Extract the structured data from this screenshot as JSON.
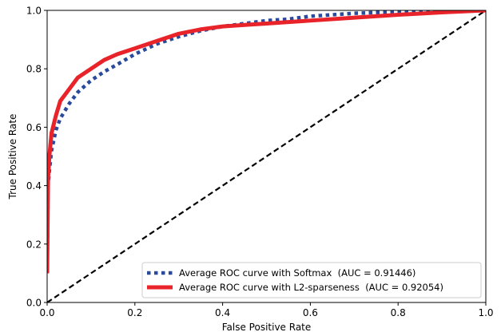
{
  "chart_data": {
    "type": "line",
    "title": "",
    "xlabel": "False Positive Rate",
    "ylabel": "True Positive Rate",
    "xlim": [
      0.0,
      1.0
    ],
    "ylim": [
      0.0,
      1.0
    ],
    "x_ticks": [
      "0.0",
      "0.2",
      "0.4",
      "0.6",
      "0.8",
      "1.0"
    ],
    "y_ticks": [
      "0.0",
      "0.2",
      "0.4",
      "0.6",
      "0.8",
      "1.0"
    ],
    "grid": false,
    "legend_position": "lower-right",
    "series": [
      {
        "name": "Average ROC curve with Softmax  (AUC = 0.91446)",
        "color": "#2a4a9c",
        "style": "dotted",
        "x": [
          0.0,
          0.002,
          0.005,
          0.01,
          0.02,
          0.03,
          0.05,
          0.07,
          0.1,
          0.13,
          0.16,
          0.2,
          0.25,
          0.3,
          0.35,
          0.4,
          0.45,
          0.5,
          0.55,
          0.6,
          0.7,
          0.8,
          0.9,
          1.0
        ],
        "y": [
          0.1,
          0.4,
          0.45,
          0.52,
          0.59,
          0.63,
          0.68,
          0.72,
          0.76,
          0.79,
          0.815,
          0.85,
          0.885,
          0.91,
          0.93,
          0.945,
          0.955,
          0.965,
          0.97,
          0.98,
          0.99,
          0.995,
          0.998,
          1.0
        ]
      },
      {
        "name": "Average ROC curve with L2-sparseness  (AUC = 0.92054)",
        "color": "#e8232a",
        "style": "solid",
        "x": [
          0.0,
          0.002,
          0.005,
          0.01,
          0.02,
          0.03,
          0.05,
          0.07,
          0.1,
          0.13,
          0.16,
          0.2,
          0.25,
          0.3,
          0.35,
          0.4,
          0.45,
          0.5,
          0.55,
          0.6,
          0.7,
          0.8,
          0.9,
          1.0
        ],
        "y": [
          0.1,
          0.42,
          0.5,
          0.58,
          0.64,
          0.69,
          0.73,
          0.77,
          0.8,
          0.83,
          0.85,
          0.87,
          0.895,
          0.92,
          0.935,
          0.945,
          0.95,
          0.955,
          0.96,
          0.965,
          0.975,
          0.985,
          0.993,
          1.0
        ]
      },
      {
        "name": "",
        "color": "#000000",
        "style": "dashed",
        "x": [
          0.0,
          1.0
        ],
        "y": [
          0.0,
          1.0
        ]
      }
    ],
    "legend": [
      {
        "label": "Average ROC curve with Softmax  (AUC = 0.91446)",
        "series_index": 0
      },
      {
        "label": "Average ROC curve with L2-sparseness  (AUC = 0.92054)",
        "series_index": 1
      }
    ]
  }
}
